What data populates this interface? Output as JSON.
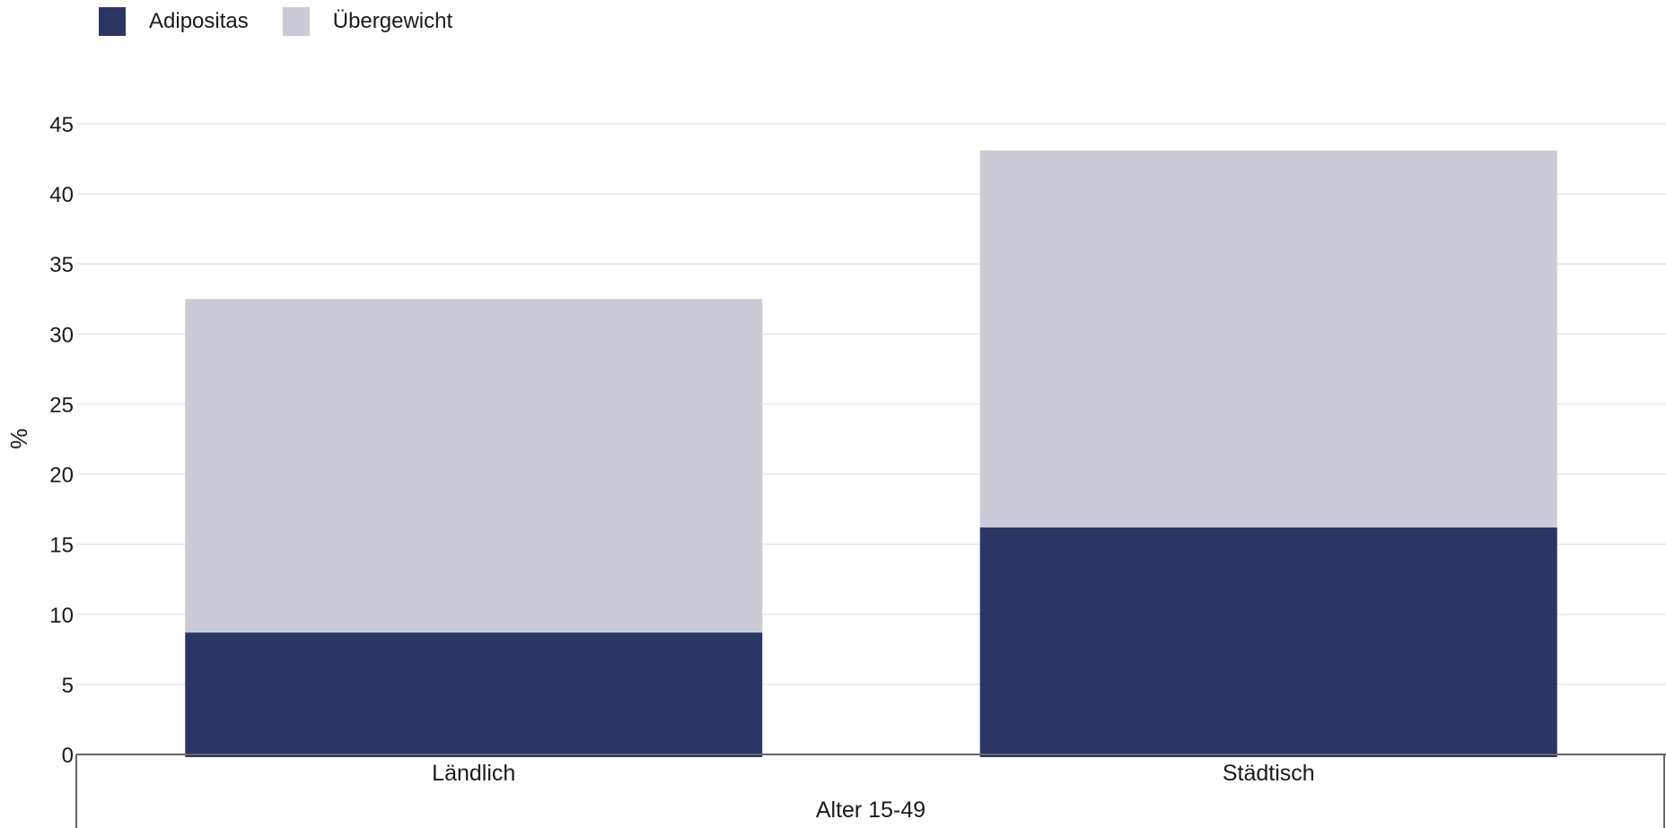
{
  "legend": {
    "items": [
      {
        "label": "Adipositas",
        "color": "#2b3664"
      },
      {
        "label": "Übergewicht",
        "color": "#cacbd7"
      }
    ]
  },
  "chart_data": {
    "type": "bar",
    "stacked": true,
    "categories": [
      "Ländlich",
      "Städtisch"
    ],
    "group_label": "Alter 15-49",
    "series": [
      {
        "name": "Adipositas",
        "color": "#2b3664",
        "values": [
          8.7,
          16.2
        ]
      },
      {
        "name": "Übergewicht",
        "color": "#cacbd7",
        "values": [
          23.8,
          26.9
        ]
      }
    ],
    "xlabel": "",
    "ylabel": "%",
    "ylim": [
      0,
      45
    ],
    "yticks": [
      0,
      5,
      10,
      15,
      20,
      25,
      30,
      35,
      40,
      45
    ],
    "grid": true,
    "legend_position": "top-left"
  }
}
